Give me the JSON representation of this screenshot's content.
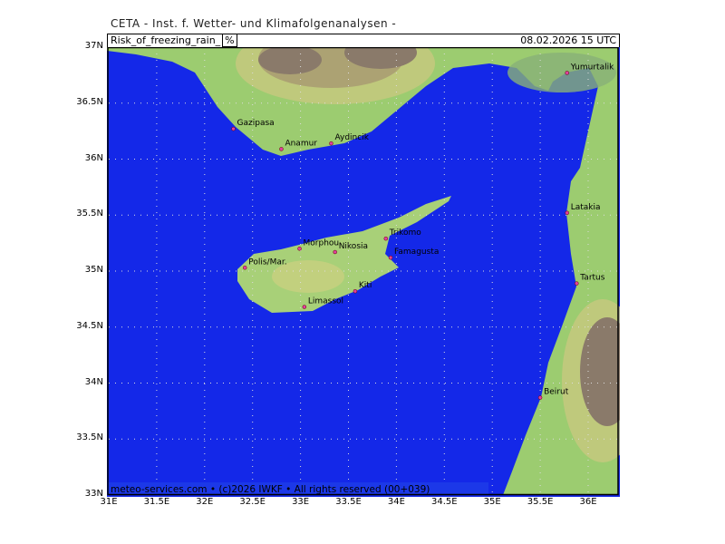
{
  "header": "CETA - Inst. f. Wetter- und Klimafolgenanalysen -",
  "variable": "Risk_of_freezing_rain_",
  "unit": "%",
  "valid_time": "08.02.2026 15 UTC",
  "footer": "meteo-services.com • (c)2026 IWKF • All rights reserved (00+039)",
  "colors": {
    "sea": "#1428e8",
    "land_low": "#9ccc70",
    "land_mid": "#c8d080",
    "terrain_high": "#8a7a6a"
  },
  "lat_labels": [
    "37N",
    "36.5N",
    "36N",
    "35.5N",
    "35N",
    "34.5N",
    "34N",
    "33.5N",
    "33N"
  ],
  "lon_labels": [
    "31E",
    "31.5E",
    "32E",
    "32.5E",
    "33E",
    "33.5E",
    "34E",
    "34.5E",
    "35E",
    "35.5E",
    "36E"
  ],
  "cities": [
    {
      "name": "Gazipasa",
      "lon": 32.3,
      "lat": 36.27
    },
    {
      "name": "Anamur",
      "lon": 32.8,
      "lat": 36.09
    },
    {
      "name": "Aydincik",
      "lon": 33.32,
      "lat": 36.14
    },
    {
      "name": "Yumurtalik",
      "lon": 35.78,
      "lat": 36.77
    },
    {
      "name": "Latakia",
      "lon": 35.78,
      "lat": 35.52
    },
    {
      "name": "Trikomo",
      "lon": 33.89,
      "lat": 35.29
    },
    {
      "name": "Morphou",
      "lon": 32.99,
      "lat": 35.2
    },
    {
      "name": "Nikosia",
      "lon": 33.36,
      "lat": 35.17
    },
    {
      "name": "Famagusta",
      "lon": 33.94,
      "lat": 35.12
    },
    {
      "name": "Polis/Mar.",
      "lon": 32.42,
      "lat": 35.03
    },
    {
      "name": "Kiti",
      "lon": 33.57,
      "lat": 34.82
    },
    {
      "name": "Limassol",
      "lon": 33.04,
      "lat": 34.68
    },
    {
      "name": "Tartus",
      "lon": 35.88,
      "lat": 34.89
    },
    {
      "name": "Beirut",
      "lon": 35.5,
      "lat": 33.87
    }
  ]
}
